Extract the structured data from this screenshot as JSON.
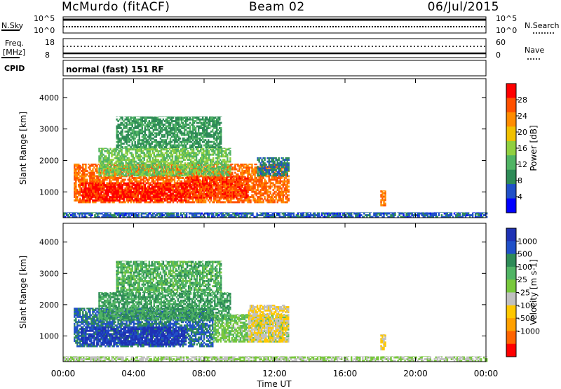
{
  "header": {
    "station": "McMurdo (fitACF)",
    "beam": "Beam 02",
    "date": "06/Jul/2015"
  },
  "strip_labels": {
    "nsky": "N.Sky",
    "nsearch": "N.Search",
    "freq": "Freq.",
    "freq_unit": "[MHz]",
    "nave": "Nave",
    "cpid": "CPID",
    "cpid_value": "normal (fast) 151 RF",
    "noise_left_ticks": [
      "10^5",
      "10^0"
    ],
    "noise_right_ticks": [
      "10^5",
      "10^0"
    ],
    "freq_left_ticks": [
      "18",
      "8"
    ],
    "nave_right_ticks": [
      "60",
      "0"
    ]
  },
  "colors": {
    "power_scale": [
      "#0000ff",
      "#2050c8",
      "#2e8b57",
      "#50b464",
      "#90d040",
      "#f0c000",
      "#ff8c00",
      "#ff5000",
      "#ff0000"
    ],
    "velocity_scale": [
      "#1e32b4",
      "#2050c8",
      "#2e8b57",
      "#50b464",
      "#78c83c",
      "#c0c0c0",
      "#ffc800",
      "#ffa000",
      "#ff6400",
      "#ff0000"
    ]
  },
  "chart_data": [
    {
      "type": "heatmap",
      "panel": "power",
      "title": "",
      "xlabel": "Time UT",
      "ylabel": "Slant Range [km]",
      "x_ticks": [
        "00:00",
        "04:00",
        "08:00",
        "12:00",
        "16:00",
        "20:00",
        "00:00"
      ],
      "xlim_hours": [
        0,
        24
      ],
      "y_ticks": [
        1000,
        2000,
        3000,
        4000
      ],
      "ylim": [
        180,
        4600
      ],
      "colorbar": {
        "label": "Power [dB]",
        "ticks": [
          4,
          8,
          12,
          16,
          20,
          24,
          28
        ],
        "range": [
          0,
          32
        ]
      },
      "regions": [
        {
          "t0": 0.6,
          "t1": 12.8,
          "r0": 650,
          "r1": 1900,
          "value": 25
        },
        {
          "t0": 1.0,
          "t1": 7.0,
          "r0": 700,
          "r1": 1300,
          "value": 30
        },
        {
          "t0": 7.0,
          "t1": 10.5,
          "r0": 800,
          "r1": 1500,
          "value": 28
        },
        {
          "t0": 2.0,
          "t1": 9.5,
          "r0": 1500,
          "r1": 2400,
          "value": 14
        },
        {
          "t0": 3.0,
          "t1": 9.0,
          "r0": 2400,
          "r1": 3400,
          "value": 10
        },
        {
          "t0": 11.0,
          "t1": 12.8,
          "r0": 1500,
          "r1": 2100,
          "value": 8
        },
        {
          "t0": 18.0,
          "t1": 18.3,
          "r0": 550,
          "r1": 1050,
          "value": 24
        },
        {
          "t0": 0.0,
          "t1": 24.0,
          "r0": 180,
          "r1": 350,
          "value": 6
        }
      ]
    },
    {
      "type": "heatmap",
      "panel": "velocity",
      "title": "",
      "xlabel": "Time UT",
      "ylabel": "Slant Range [km]",
      "x_ticks": [
        "00:00",
        "04:00",
        "08:00",
        "12:00",
        "16:00",
        "20:00",
        "00:00"
      ],
      "xlim_hours": [
        0,
        24
      ],
      "y_ticks": [
        1000,
        2000,
        3000,
        4000
      ],
      "ylim": [
        180,
        4600
      ],
      "colorbar": {
        "label": "Velocity [m s-1]",
        "ticks": [
          "1000",
          "500",
          "100",
          "25",
          "-25",
          "-100",
          "-500",
          "-1000"
        ],
        "range": [
          -1000,
          1000
        ]
      },
      "regions": [
        {
          "t0": 0.6,
          "t1": 8.5,
          "r0": 650,
          "r1": 1900,
          "value": 600
        },
        {
          "t0": 1.0,
          "t1": 7.0,
          "r0": 700,
          "r1": 1300,
          "value": 900
        },
        {
          "t0": 8.5,
          "t1": 12.8,
          "r0": 800,
          "r1": 1700,
          "value": 150
        },
        {
          "t0": 10.5,
          "t1": 12.8,
          "r0": 800,
          "r1": 2000,
          "value": -200
        },
        {
          "t0": 2.0,
          "t1": 9.5,
          "r0": 1500,
          "r1": 2400,
          "value": 400
        },
        {
          "t0": 3.0,
          "t1": 9.0,
          "r0": 2400,
          "r1": 3400,
          "value": 300
        },
        {
          "t0": 18.0,
          "t1": 18.3,
          "r0": 550,
          "r1": 1050,
          "value": -200
        },
        {
          "t0": 0.0,
          "t1": 24.0,
          "r0": 180,
          "r1": 350,
          "value": 0
        }
      ]
    }
  ]
}
